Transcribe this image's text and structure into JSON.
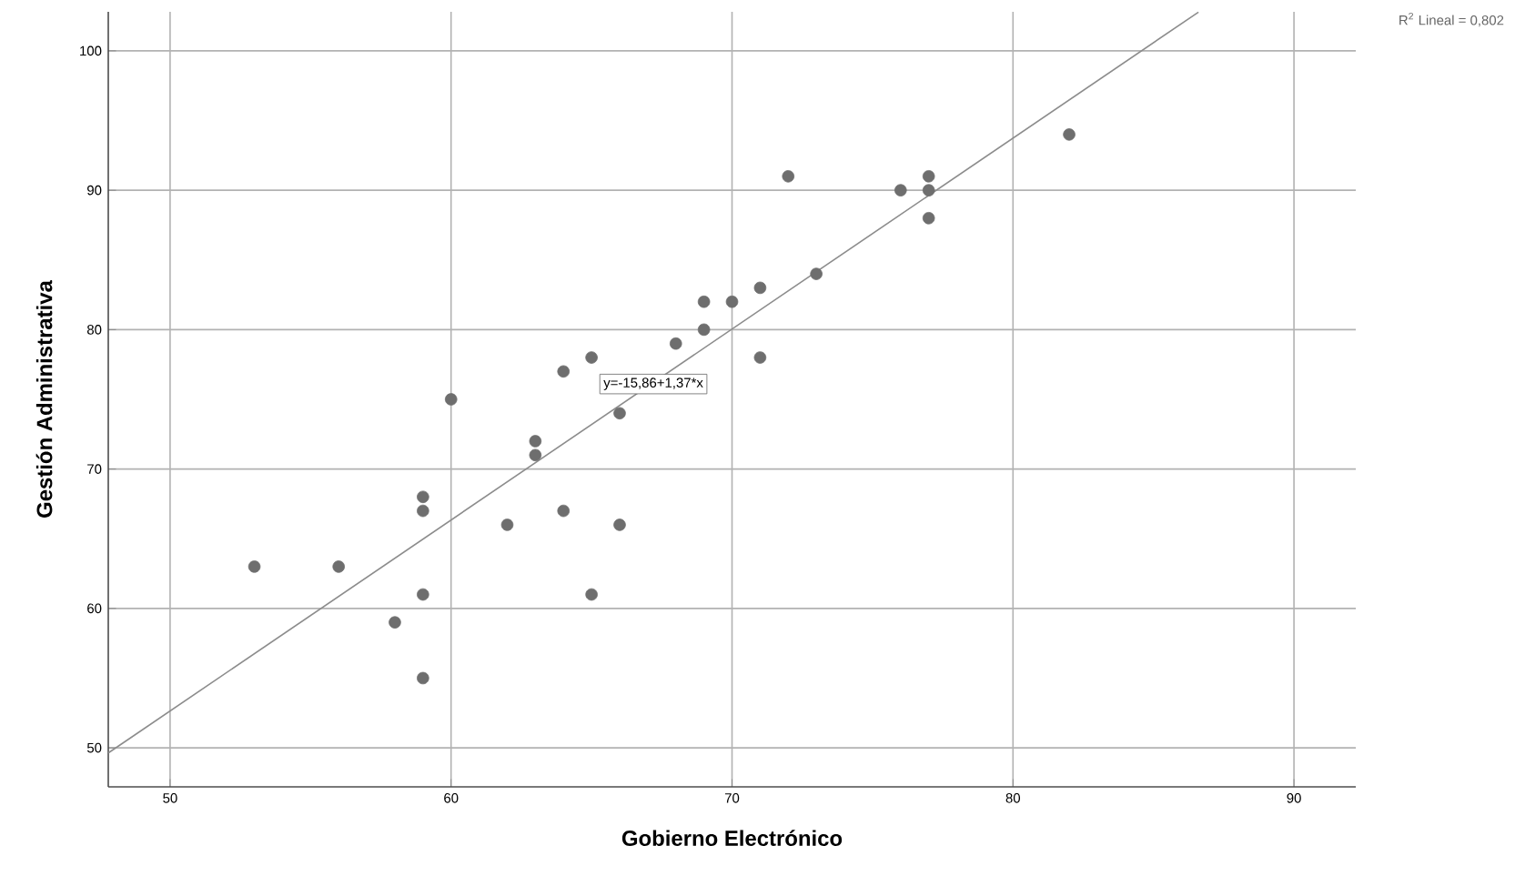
{
  "chart_data": {
    "type": "scatter",
    "xlabel": "Gobierno Electrónico",
    "ylabel": "Gestión Administrativa",
    "xlim": [
      47.8,
      92.2
    ],
    "ylim": [
      47.2,
      102.8
    ],
    "xticks": [
      50,
      60,
      70,
      80,
      90
    ],
    "yticks": [
      50,
      60,
      70,
      80,
      90,
      100
    ],
    "grid": true,
    "series": [
      {
        "marker": "circle",
        "color": "#6e6e6e",
        "x": [
          53,
          56,
          58,
          59,
          59,
          59,
          59,
          60,
          62,
          63,
          63,
          64,
          64,
          65,
          65,
          66,
          66,
          68,
          69,
          69,
          70,
          71,
          71,
          72,
          73,
          76,
          77,
          77,
          77,
          82
        ],
        "values": [
          63,
          63,
          59,
          68,
          67,
          61,
          55,
          75,
          66,
          72,
          71,
          77,
          67,
          78,
          61,
          74,
          66,
          79,
          82,
          80,
          82,
          83,
          78,
          91,
          84,
          90,
          91,
          90,
          88,
          94
        ]
      },
      {
        "type": "line",
        "marker": "none",
        "color": "#8c8c8c",
        "x": [
          47.8,
          86.6
        ],
        "values": [
          49.63,
          102.78
        ]
      }
    ],
    "annotations": [
      {
        "text": "y=-15,86+1,37*x",
        "x": 67.2,
        "y": 76.1
      },
      "R$^{2}$ Lineal = 0,802"
    ]
  }
}
